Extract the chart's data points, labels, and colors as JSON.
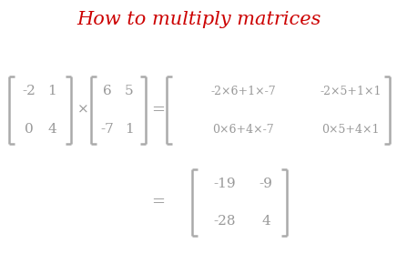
{
  "title": "How to multiply matrices",
  "title_color": "#cc0000",
  "title_fontsize": 15,
  "bg_color": "#ffffff",
  "text_color": "#999999",
  "bracket_color": "#aaaaaa",
  "matrix1": [
    [
      "-2",
      "1"
    ],
    [
      "0",
      "4"
    ]
  ],
  "matrix2": [
    [
      "6",
      "5"
    ],
    [
      "-7",
      "1"
    ]
  ],
  "result_expanded": [
    [
      "-2×6+1×-7",
      "-2×5+1×1"
    ],
    [
      "0×6+4×-7",
      "0×5+4×1"
    ]
  ],
  "result_final": [
    [
      "-19",
      "-9"
    ],
    [
      "-28",
      "4"
    ]
  ],
  "multiply_symbol": "×",
  "equals_symbol": "=",
  "fs_main": 11,
  "fs_expr": 9,
  "bracket_lw": 1.8,
  "bracket_arm": 6
}
